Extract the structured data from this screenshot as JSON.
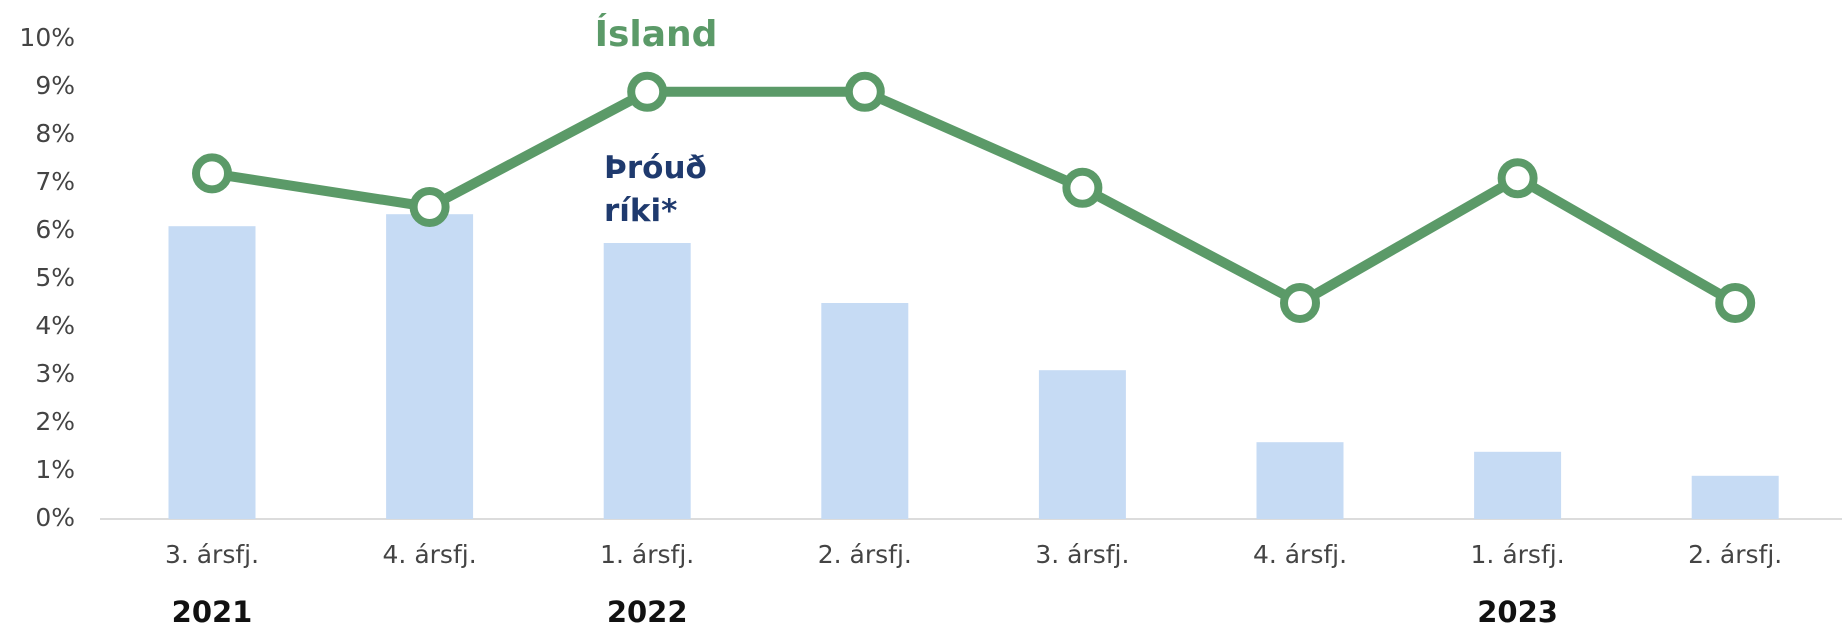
{
  "chart_data": {
    "type": "bar",
    "categories": [
      "3. ársfj.",
      "4. ársfj.",
      "1. ársfj.",
      "2. ársfj.",
      "3. ársfj.",
      "4. ársfj.",
      "1. ársfj.",
      "2. ársfj."
    ],
    "years": [
      "2021",
      null,
      "2022",
      null,
      null,
      null,
      "2023",
      null
    ],
    "series": [
      {
        "name": "Þróuð ríki*",
        "type": "bar",
        "color": "#c6dbf4",
        "label_color": "#1f3a6e",
        "values": [
          6.1,
          6.35,
          5.75,
          4.5,
          3.1,
          1.6,
          1.4,
          0.9
        ]
      },
      {
        "name": "Ísland",
        "type": "line",
        "color": "#5b9a68",
        "label_color": "#5b9a68",
        "values": [
          7.2,
          6.5,
          8.9,
          8.9,
          6.9,
          4.5,
          7.1,
          4.5
        ]
      }
    ],
    "ylim": [
      0,
      10
    ],
    "yticks": [
      {
        "value": 0,
        "label": "0%"
      },
      {
        "value": 1,
        "label": "1%"
      },
      {
        "value": 2,
        "label": "2%"
      },
      {
        "value": 3,
        "label": "3%"
      },
      {
        "value": 4,
        "label": "4%"
      },
      {
        "value": 5,
        "label": "5%"
      },
      {
        "value": 6,
        "label": "6%"
      },
      {
        "value": 7,
        "label": "7%"
      },
      {
        "value": 8,
        "label": "8%"
      },
      {
        "value": 9,
        "label": "9%"
      },
      {
        "value": 10,
        "label": "10%"
      }
    ],
    "grid": false
  }
}
